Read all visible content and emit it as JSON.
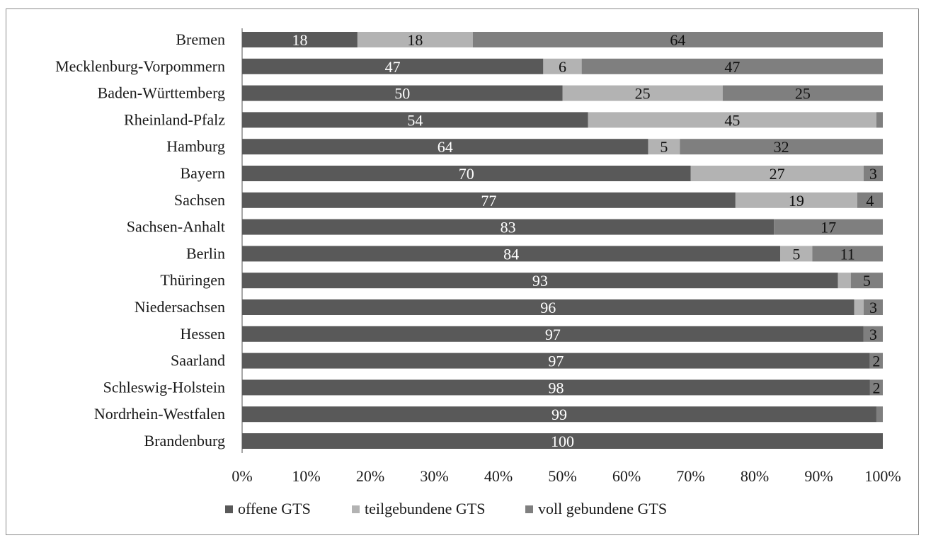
{
  "chart_data": {
    "type": "bar",
    "orientation": "horizontal",
    "stacked": "percent",
    "categories": [
      "Bremen",
      "Mecklenburg-Vorpommern",
      "Baden-Württemberg",
      "Rheinland-Pfalz",
      "Hamburg",
      "Bayern",
      "Sachsen",
      "Sachsen-Anhalt",
      "Berlin",
      "Thüringen",
      "Niedersachsen",
      "Hessen",
      "Saarland",
      "Schleswig-Holstein",
      "Nordrhein-Westfalen",
      "Brandenburg"
    ],
    "series": [
      {
        "name": "offene GTS",
        "color": "#595959",
        "values": [
          18,
          47,
          50,
          54,
          64,
          70,
          77,
          83,
          84,
          93,
          96,
          97,
          97,
          98,
          99,
          100
        ],
        "labels": [
          "18",
          "47",
          "50",
          "54",
          "64",
          "70",
          "77",
          "83",
          "84",
          "93",
          "96",
          "97",
          "97",
          "98",
          "99",
          "100"
        ]
      },
      {
        "name": "teilgebundene GTS",
        "color": "#b3b3b3",
        "values": [
          18,
          6,
          25,
          45,
          5,
          27,
          19,
          0,
          5,
          2,
          1.5,
          0,
          0,
          0,
          0,
          0
        ],
        "labels": [
          "18",
          "6",
          "25",
          "45",
          "5",
          "27",
          "19",
          "",
          "5",
          "",
          "",
          "",
          "",
          "",
          "",
          ""
        ]
      },
      {
        "name": "voll gebundene GTS",
        "color": "#7f7f7f",
        "values": [
          64,
          47,
          25,
          1,
          32,
          3,
          4,
          17,
          11,
          5,
          3,
          3,
          2,
          2,
          1,
          0
        ],
        "labels": [
          "64",
          "47",
          "25",
          "",
          "32",
          "3",
          "4",
          "17",
          "11",
          "5",
          "3",
          "3",
          "2",
          "2",
          "",
          ""
        ]
      }
    ],
    "x_ticks": [
      "0%",
      "10%",
      "20%",
      "30%",
      "40%",
      "50%",
      "60%",
      "70%",
      "80%",
      "90%",
      "100%"
    ],
    "xlim": [
      0,
      100
    ],
    "grid": false,
    "legend_position": "bottom"
  }
}
